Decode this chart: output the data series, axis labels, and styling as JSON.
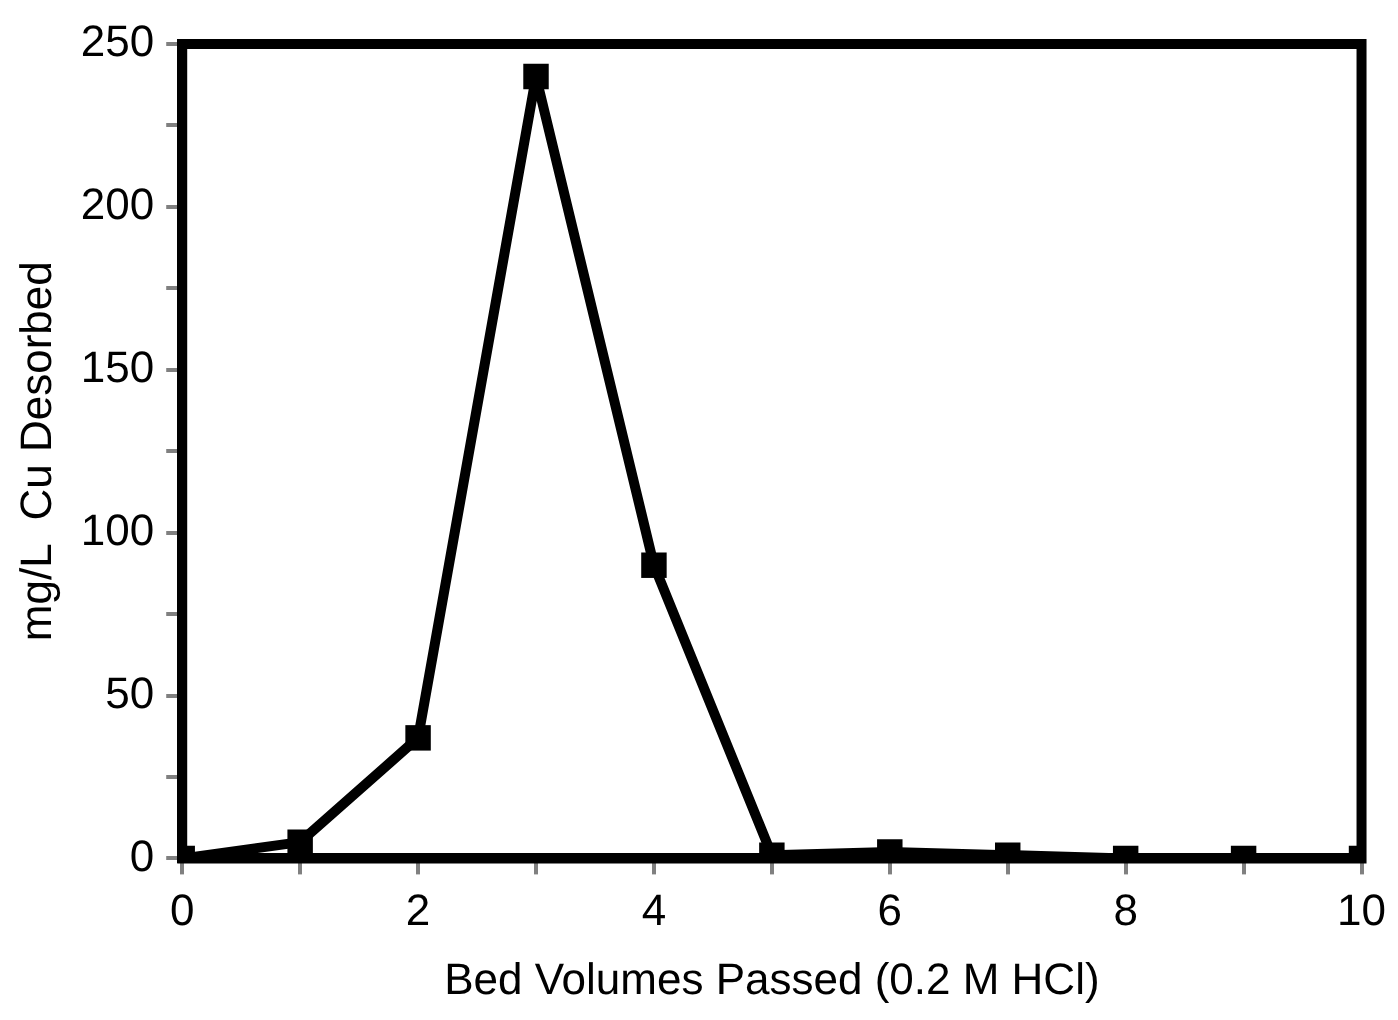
{
  "chart_data": {
    "type": "line",
    "xlabel": "Bed Volumes Passed (0.2 M HCl)",
    "ylabel": "mg/L  Cu Desorbed",
    "x": [
      0,
      1,
      2,
      3,
      4,
      5,
      6,
      7,
      8,
      9,
      10
    ],
    "series": [
      {
        "color": "#000000",
        "values": [
          0,
          5,
          37,
          240,
          90,
          1,
          2,
          1,
          0,
          0,
          0
        ]
      }
    ],
    "xlim": [
      0,
      10
    ],
    "xticks": [
      0,
      {
        "value": 1,
        "label": null
      },
      2,
      {
        "value": 3,
        "label": null
      },
      4,
      {
        "value": 5,
        "label": null
      },
      6,
      {
        "value": 7,
        "label": null
      },
      8,
      {
        "value": 9,
        "label": null
      },
      10
    ],
    "ylim": [
      0,
      250
    ],
    "yticks": [
      0,
      {
        "value": 25,
        "label": null
      },
      50,
      {
        "value": 75,
        "label": null
      },
      100,
      {
        "value": 125,
        "label": null
      },
      150,
      {
        "value": 175,
        "label": null
      },
      200,
      {
        "value": 225,
        "label": null
      },
      250
    ],
    "grid": false,
    "legend": false,
    "marker": "square",
    "line_style": "solid"
  }
}
